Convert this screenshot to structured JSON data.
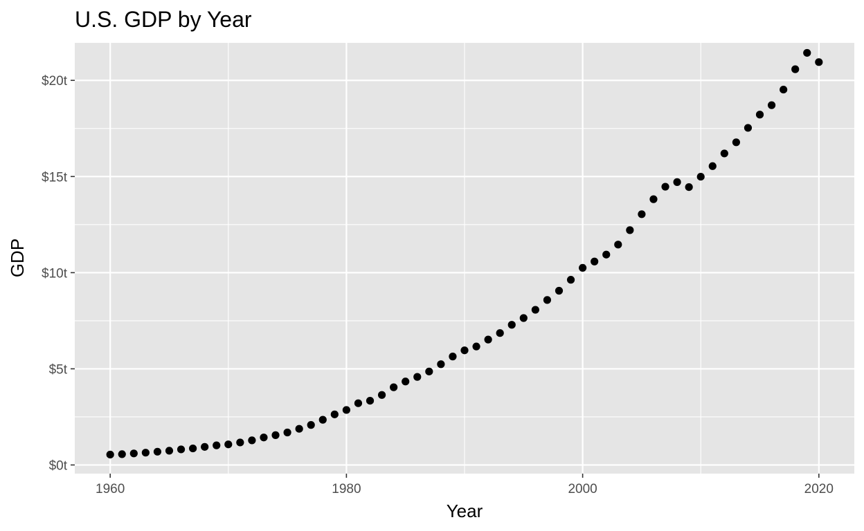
{
  "chart_data": {
    "type": "scatter",
    "title": "U.S. GDP by Year",
    "xlabel": "Year",
    "ylabel": "GDP",
    "xlim": [
      1957,
      2023
    ],
    "ylim": [
      -0.45,
      21.95
    ],
    "x_ticks": [
      1960,
      1980,
      2000,
      2020
    ],
    "x_tick_labels": [
      "1960",
      "1980",
      "2000",
      "2020"
    ],
    "y_ticks": [
      0,
      5,
      10,
      15,
      20
    ],
    "y_tick_labels": [
      "$0t",
      "$5t",
      "$10t",
      "$15t",
      "$20t"
    ],
    "grid": true,
    "legend": "none",
    "colors": {
      "panel": "#e5e5e5",
      "grid": "#ffffff",
      "point": "#000000",
      "tick": "#333333"
    },
    "points": [
      {
        "x": 1960,
        "y": 0.54
      },
      {
        "x": 1961,
        "y": 0.56
      },
      {
        "x": 1962,
        "y": 0.6
      },
      {
        "x": 1963,
        "y": 0.64
      },
      {
        "x": 1964,
        "y": 0.69
      },
      {
        "x": 1965,
        "y": 0.74
      },
      {
        "x": 1966,
        "y": 0.81
      },
      {
        "x": 1967,
        "y": 0.86
      },
      {
        "x": 1968,
        "y": 0.94
      },
      {
        "x": 1969,
        "y": 1.02
      },
      {
        "x": 1970,
        "y": 1.07
      },
      {
        "x": 1971,
        "y": 1.17
      },
      {
        "x": 1972,
        "y": 1.28
      },
      {
        "x": 1973,
        "y": 1.43
      },
      {
        "x": 1974,
        "y": 1.55
      },
      {
        "x": 1975,
        "y": 1.69
      },
      {
        "x": 1976,
        "y": 1.88
      },
      {
        "x": 1977,
        "y": 2.08
      },
      {
        "x": 1978,
        "y": 2.35
      },
      {
        "x": 1979,
        "y": 2.63
      },
      {
        "x": 1980,
        "y": 2.86
      },
      {
        "x": 1981,
        "y": 3.21
      },
      {
        "x": 1982,
        "y": 3.34
      },
      {
        "x": 1983,
        "y": 3.64
      },
      {
        "x": 1984,
        "y": 4.04
      },
      {
        "x": 1985,
        "y": 4.34
      },
      {
        "x": 1986,
        "y": 4.58
      },
      {
        "x": 1987,
        "y": 4.86
      },
      {
        "x": 1988,
        "y": 5.24
      },
      {
        "x": 1989,
        "y": 5.64
      },
      {
        "x": 1990,
        "y": 5.96
      },
      {
        "x": 1991,
        "y": 6.16
      },
      {
        "x": 1992,
        "y": 6.52
      },
      {
        "x": 1993,
        "y": 6.86
      },
      {
        "x": 1994,
        "y": 7.29
      },
      {
        "x": 1995,
        "y": 7.64
      },
      {
        "x": 1996,
        "y": 8.07
      },
      {
        "x": 1997,
        "y": 8.58
      },
      {
        "x": 1998,
        "y": 9.06
      },
      {
        "x": 1999,
        "y": 9.63
      },
      {
        "x": 2000,
        "y": 10.25
      },
      {
        "x": 2001,
        "y": 10.58
      },
      {
        "x": 2002,
        "y": 10.94
      },
      {
        "x": 2003,
        "y": 11.46
      },
      {
        "x": 2004,
        "y": 12.21
      },
      {
        "x": 2005,
        "y": 13.04
      },
      {
        "x": 2006,
        "y": 13.82
      },
      {
        "x": 2007,
        "y": 14.47
      },
      {
        "x": 2008,
        "y": 14.71
      },
      {
        "x": 2009,
        "y": 14.45
      },
      {
        "x": 2010,
        "y": 14.99
      },
      {
        "x": 2011,
        "y": 15.54
      },
      {
        "x": 2012,
        "y": 16.2
      },
      {
        "x": 2013,
        "y": 16.78
      },
      {
        "x": 2014,
        "y": 17.53
      },
      {
        "x": 2015,
        "y": 18.22
      },
      {
        "x": 2016,
        "y": 18.71
      },
      {
        "x": 2017,
        "y": 19.52
      },
      {
        "x": 2018,
        "y": 20.58
      },
      {
        "x": 2019,
        "y": 21.43
      },
      {
        "x": 2020,
        "y": 20.95
      }
    ]
  }
}
